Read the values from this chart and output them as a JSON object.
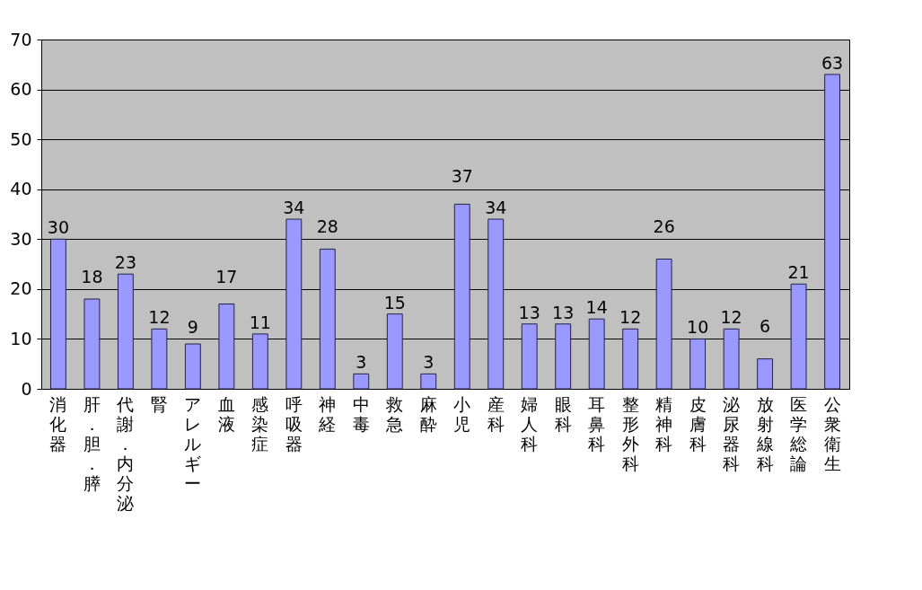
{
  "chart_data": {
    "type": "bar",
    "categories": [
      "消化器",
      "肝．胆．膵",
      "代謝．内分泌",
      "腎",
      "アレルギー",
      "血液",
      "感染症",
      "呼吸器",
      "神経",
      "中毒",
      "救急",
      "麻酔",
      "小児",
      "産科",
      "婦人科",
      "眼科",
      "耳鼻科",
      "整形外科",
      "精神科",
      "皮膚科",
      "泌尿器科",
      "放射線科",
      "医学総論",
      "公衆衛生"
    ],
    "values": [
      30,
      18,
      23,
      12,
      9,
      17,
      11,
      34,
      28,
      3,
      15,
      3,
      37,
      34,
      13,
      13,
      14,
      12,
      26,
      10,
      12,
      6,
      21,
      63
    ],
    "color": "#9999ff",
    "ylim": [
      0,
      70
    ],
    "yticks": [
      0,
      10,
      20,
      30,
      40,
      50,
      60,
      70
    ],
    "grid": "y",
    "data_labels": true
  }
}
